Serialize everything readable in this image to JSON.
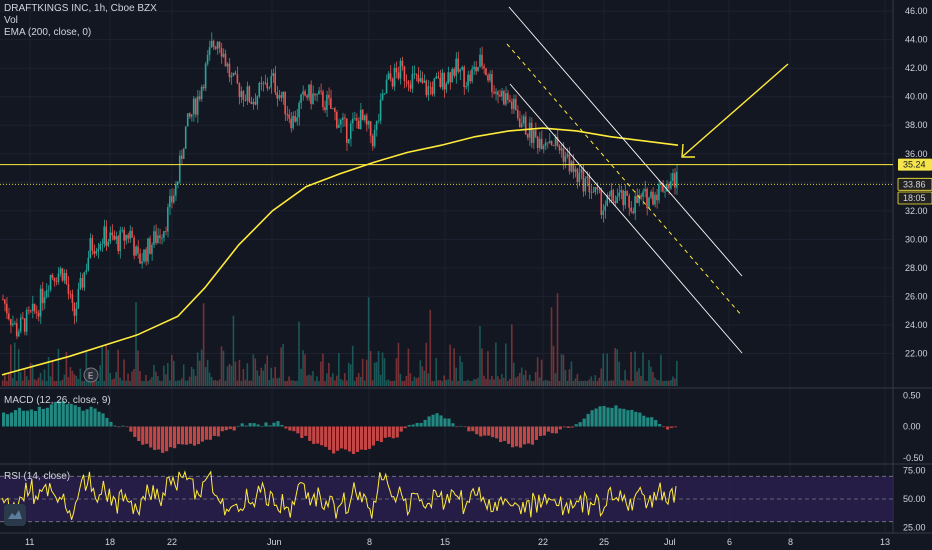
{
  "header": {
    "symbol": "DRAFTKINGS INC, 1h, Cboe BZX",
    "volume": "Vol",
    "ema": "EMA (200, close, 0)"
  },
  "macd_legend": "MACD (12, 26, close, 9)",
  "rsi_legend": "RSI (14, close)",
  "colors": {
    "background": "#131722",
    "up": "#26a69a",
    "down": "#ef5350",
    "ema": "#ffeb3b",
    "annotation": "#ffeb3b",
    "channel": "#ffffff",
    "rsi": "#ffeb3b",
    "rsi_band": "#2a1f4d",
    "grid": "#1e2230",
    "axis_text": "#d1d4dc"
  },
  "icons": [
    "earnings-marker-icon",
    "tradingview-logo-icon"
  ],
  "earnings_marker": "E",
  "chart_data": [
    {
      "type": "candlestick",
      "title": "DRAFTKINGS INC, 1h, Cboe BZX",
      "ylim": [
        20,
        46.5
      ],
      "yticks": [
        "46.00",
        "44.00",
        "42.00",
        "40.00",
        "38.00",
        "36.00",
        "34.00",
        "32.00",
        "30.00",
        "28.00",
        "26.00",
        "24.00",
        "22.00"
      ],
      "xticks": [
        "11",
        "18",
        "22",
        "Jun",
        "8",
        "15",
        "22",
        "25",
        "Jul",
        "6",
        "8",
        "13"
      ],
      "price_labels": [
        {
          "label": "35.24",
          "value": 35.24,
          "style": "yellow"
        },
        {
          "label": "33.86",
          "value": 33.86,
          "style": "dark"
        },
        {
          "label": "18:05",
          "value": 32.9,
          "style": "dark"
        }
      ],
      "horizontal_levels": [
        35.24,
        33.86
      ],
      "path": [
        {
          "t": 0,
          "v": 25.8
        },
        {
          "t": 0.02,
          "v": 23.6
        },
        {
          "t": 0.05,
          "v": 25.0
        },
        {
          "t": 0.07,
          "v": 27.5
        },
        {
          "t": 0.09,
          "v": 27.8
        },
        {
          "t": 0.105,
          "v": 24.5
        },
        {
          "t": 0.13,
          "v": 29.5
        },
        {
          "t": 0.15,
          "v": 30.2
        },
        {
          "t": 0.17,
          "v": 29.8
        },
        {
          "t": 0.19,
          "v": 30.5
        },
        {
          "t": 0.2,
          "v": 28.4
        },
        {
          "t": 0.21,
          "v": 29.0
        },
        {
          "t": 0.24,
          "v": 31.0
        },
        {
          "t": 0.26,
          "v": 34.3
        },
        {
          "t": 0.27,
          "v": 37.5
        },
        {
          "t": 0.29,
          "v": 40.0
        },
        {
          "t": 0.31,
          "v": 43.5
        },
        {
          "t": 0.32,
          "v": 44.2
        },
        {
          "t": 0.34,
          "v": 41.0
        },
        {
          "t": 0.37,
          "v": 39.8
        },
        {
          "t": 0.4,
          "v": 41.2
        },
        {
          "t": 0.43,
          "v": 38.3
        },
        {
          "t": 0.45,
          "v": 40.2
        },
        {
          "t": 0.48,
          "v": 39.6
        },
        {
          "t": 0.51,
          "v": 37.5
        },
        {
          "t": 0.53,
          "v": 38.5
        },
        {
          "t": 0.55,
          "v": 37.0
        },
        {
          "t": 0.57,
          "v": 41.0
        },
        {
          "t": 0.59,
          "v": 41.8
        },
        {
          "t": 0.61,
          "v": 41.2
        },
        {
          "t": 0.63,
          "v": 40.5
        },
        {
          "t": 0.65,
          "v": 41.0
        },
        {
          "t": 0.67,
          "v": 42.0
        },
        {
          "t": 0.69,
          "v": 41.2
        },
        {
          "t": 0.71,
          "v": 42.5
        },
        {
          "t": 0.73,
          "v": 40.5
        },
        {
          "t": 0.75,
          "v": 39.8
        },
        {
          "t": 0.77,
          "v": 38.2
        },
        {
          "t": 0.79,
          "v": 37.0
        },
        {
          "t": 0.81,
          "v": 37.2
        },
        {
          "t": 0.83,
          "v": 36.2
        },
        {
          "t": 0.85,
          "v": 34.5
        },
        {
          "t": 0.87,
          "v": 33.8
        },
        {
          "t": 0.89,
          "v": 32.3
        },
        {
          "t": 0.91,
          "v": 33.0
        },
        {
          "t": 0.93,
          "v": 32.4
        },
        {
          "t": 0.96,
          "v": 33.0
        },
        {
          "t": 0.98,
          "v": 33.8
        },
        {
          "t": 1.0,
          "v": 34.3
        }
      ],
      "ema_points": [
        [
          0,
          20.5
        ],
        [
          0.1,
          21.8
        ],
        [
          0.2,
          23.3
        ],
        [
          0.26,
          24.6
        ],
        [
          0.3,
          26.6
        ],
        [
          0.35,
          29.6
        ],
        [
          0.4,
          32.0
        ],
        [
          0.45,
          33.7
        ],
        [
          0.5,
          34.6
        ],
        [
          0.55,
          35.4
        ],
        [
          0.6,
          36.1
        ],
        [
          0.65,
          36.6
        ],
        [
          0.7,
          37.2
        ],
        [
          0.75,
          37.6
        ],
        [
          0.8,
          37.8
        ],
        [
          0.85,
          37.6
        ],
        [
          0.9,
          37.2
        ],
        [
          0.95,
          36.9
        ],
        [
          1.0,
          36.6
        ]
      ]
    },
    {
      "type": "bar",
      "title": "MACD (12, 26, close, 9)",
      "ylim": [
        -0.6,
        0.6
      ],
      "yticks": [
        "0.50",
        "0.00",
        "-0.50"
      ]
    },
    {
      "type": "line",
      "title": "RSI (14, close)",
      "ylim": [
        20,
        80
      ],
      "yticks": [
        "75.00",
        "50.00",
        "25.00"
      ],
      "band": [
        30,
        70
      ]
    }
  ]
}
